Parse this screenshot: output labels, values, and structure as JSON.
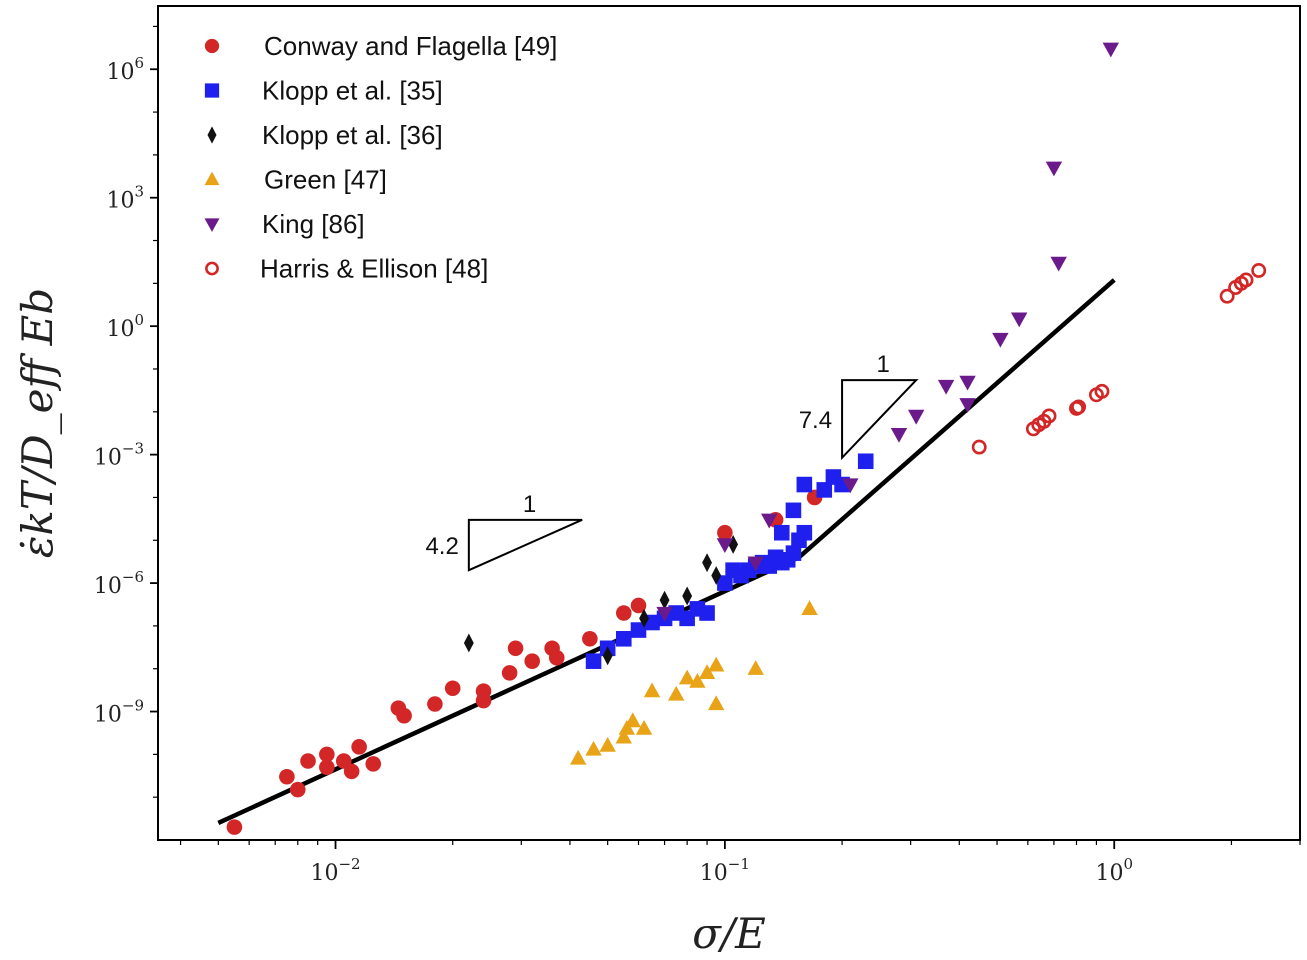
{
  "chart_data": {
    "type": "scatter",
    "title": "",
    "xlabel": "σ/E",
    "ylabel": "ε̇kT/D_eff Eb",
    "xscale": "log",
    "yscale": "log",
    "xlim": [
      0.0035,
      3.0
    ],
    "ylim": [
      1e-12,
      30000000.0
    ],
    "x_ticks": [
      {
        "base": "10",
        "exp": "−2",
        "value": 0.01
      },
      {
        "base": "10",
        "exp": "−1",
        "value": 0.1
      },
      {
        "base": "10",
        "exp": "0",
        "value": 1
      }
    ],
    "y_ticks": [
      {
        "base": "10",
        "exp": "6",
        "value": 1000000.0
      },
      {
        "base": "10",
        "exp": "3",
        "value": 1000.0
      },
      {
        "base": "10",
        "exp": "0",
        "value": 1
      },
      {
        "base": "10",
        "exp": "−3",
        "value": 0.001
      },
      {
        "base": "10",
        "exp": "−6",
        "value": 1e-06
      },
      {
        "base": "10",
        "exp": "−9",
        "value": 1e-09
      }
    ],
    "grid": false,
    "legend_position": "top-left",
    "fit_line": {
      "x": [
        0.005,
        0.155,
        1.0
      ],
      "y": [
        2.5e-12,
        4e-06,
        12
      ]
    },
    "annotations": [
      {
        "slope_label": "4.2",
        "run_label": "1",
        "x0": 0.022,
        "x1": 0.043,
        "y_top": 3e-05,
        "y_bottom": 2e-06
      },
      {
        "slope_label": "7.4",
        "run_label": "1",
        "x0": 0.2,
        "x1": 0.31,
        "y_top": 0.055,
        "y_bottom": 0.00085
      }
    ],
    "series": [
      {
        "name": "Conway and Flagella [49]",
        "marker": "circle",
        "color": "#d32727",
        "points": [
          [
            0.0055,
            2e-12
          ],
          [
            0.0075,
            3e-11
          ],
          [
            0.008,
            1.5e-11
          ],
          [
            0.0085,
            7e-11
          ],
          [
            0.0095,
            1e-10
          ],
          [
            0.0095,
            5e-11
          ],
          [
            0.0105,
            7e-11
          ],
          [
            0.011,
            4e-11
          ],
          [
            0.0115,
            1.5e-10
          ],
          [
            0.0125,
            6e-11
          ],
          [
            0.0145,
            1.2e-09
          ],
          [
            0.015,
            8e-10
          ],
          [
            0.018,
            1.5e-09
          ],
          [
            0.02,
            3.5e-09
          ],
          [
            0.024,
            3e-09
          ],
          [
            0.024,
            1.8e-09
          ],
          [
            0.028,
            8e-09
          ],
          [
            0.029,
            3e-08
          ],
          [
            0.032,
            1.5e-08
          ],
          [
            0.036,
            3e-08
          ],
          [
            0.037,
            1.8e-08
          ],
          [
            0.045,
            5e-08
          ],
          [
            0.055,
            2e-07
          ],
          [
            0.06,
            3e-07
          ],
          [
            0.1,
            1.5e-05
          ],
          [
            0.135,
            3e-05
          ],
          [
            0.17,
            0.0001
          ]
        ]
      },
      {
        "name": "Klopp et  al.  [35]",
        "marker": "square",
        "color": "#2020ee",
        "points": [
          [
            0.046,
            1.5e-08
          ],
          [
            0.05,
            3e-08
          ],
          [
            0.055,
            5e-08
          ],
          [
            0.06,
            8e-08
          ],
          [
            0.065,
            1.2e-07
          ],
          [
            0.07,
            1.5e-07
          ],
          [
            0.075,
            2e-07
          ],
          [
            0.08,
            1.5e-07
          ],
          [
            0.085,
            2.5e-07
          ],
          [
            0.09,
            2e-07
          ],
          [
            0.1,
            1e-06
          ],
          [
            0.105,
            2e-06
          ],
          [
            0.11,
            1.5e-06
          ],
          [
            0.115,
            2e-06
          ],
          [
            0.12,
            2.5e-06
          ],
          [
            0.125,
            3e-06
          ],
          [
            0.13,
            2.5e-06
          ],
          [
            0.135,
            4e-06
          ],
          [
            0.14,
            3e-06
          ],
          [
            0.145,
            3.5e-06
          ],
          [
            0.15,
            5e-06
          ],
          [
            0.155,
            1e-05
          ],
          [
            0.16,
            1.5e-05
          ],
          [
            0.14,
            1.5e-05
          ],
          [
            0.15,
            5e-05
          ],
          [
            0.16,
            0.0002
          ],
          [
            0.18,
            0.00015
          ],
          [
            0.19,
            0.0003
          ],
          [
            0.2,
            0.0002
          ],
          [
            0.23,
            0.0007
          ]
        ]
      },
      {
        "name": "Klopp et  al.  [36]",
        "marker": "diamond",
        "color": "#111111",
        "points": [
          [
            0.022,
            4e-08
          ],
          [
            0.05,
            2e-08
          ],
          [
            0.062,
            1.5e-07
          ],
          [
            0.07,
            4e-07
          ],
          [
            0.08,
            5e-07
          ],
          [
            0.09,
            3e-06
          ],
          [
            0.095,
            1.5e-06
          ],
          [
            0.105,
            8e-06
          ]
        ]
      },
      {
        "name": "Green  [47]",
        "marker": "triangle-up",
        "color": "#e8a317",
        "points": [
          [
            0.042,
            8e-11
          ],
          [
            0.046,
            1.3e-10
          ],
          [
            0.05,
            1.6e-10
          ],
          [
            0.055,
            2.5e-10
          ],
          [
            0.056,
            4e-10
          ],
          [
            0.058,
            6e-10
          ],
          [
            0.062,
            4e-10
          ],
          [
            0.065,
            3e-09
          ],
          [
            0.075,
            2.5e-09
          ],
          [
            0.08,
            6e-09
          ],
          [
            0.085,
            5e-09
          ],
          [
            0.09,
            8e-09
          ],
          [
            0.095,
            1.5e-09
          ],
          [
            0.095,
            1.2e-08
          ],
          [
            0.12,
            1e-08
          ],
          [
            0.165,
            2.5e-07
          ]
        ]
      },
      {
        "name": "King   [86]",
        "marker": "triangle-down",
        "color": "#6a1a8a",
        "points": [
          [
            0.07,
            2e-07
          ],
          [
            0.1,
            8e-06
          ],
          [
            0.12,
            3e-06
          ],
          [
            0.13,
            3e-05
          ],
          [
            0.21,
            0.0002
          ],
          [
            0.28,
            0.003
          ],
          [
            0.31,
            0.008
          ],
          [
            0.37,
            0.04
          ],
          [
            0.42,
            0.05
          ],
          [
            0.42,
            0.015
          ],
          [
            0.51,
            0.5
          ],
          [
            0.57,
            1.5
          ],
          [
            0.7,
            5000
          ],
          [
            0.72,
            30
          ],
          [
            0.98,
            3000000.0
          ]
        ]
      },
      {
        "name": "Harris & Ellison [48]",
        "marker": "circle-open",
        "color": "#d32727",
        "points": [
          [
            0.45,
            0.0015
          ],
          [
            0.62,
            0.004
          ],
          [
            0.64,
            0.005
          ],
          [
            0.66,
            0.006
          ],
          [
            0.68,
            0.008
          ],
          [
            0.8,
            0.012
          ],
          [
            0.81,
            0.013
          ],
          [
            0.9,
            0.025
          ],
          [
            0.93,
            0.03
          ],
          [
            1.95,
            5
          ],
          [
            2.05,
            8
          ],
          [
            2.12,
            10
          ],
          [
            2.18,
            12
          ],
          [
            2.35,
            20
          ]
        ]
      }
    ]
  }
}
